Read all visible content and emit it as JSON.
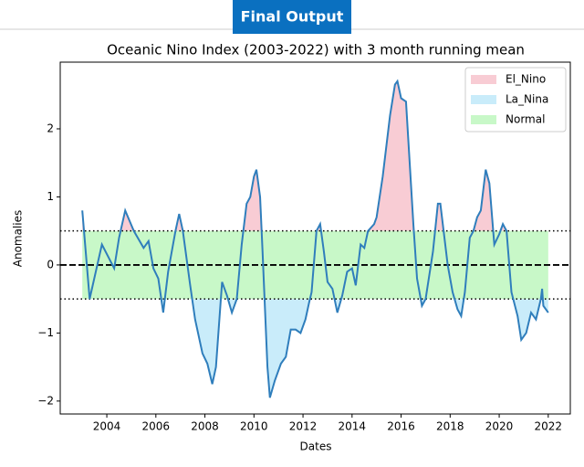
{
  "banner": "Final Output",
  "chart_data": {
    "type": "line",
    "title": "Oceanic Nino Index (2003-2022) with 3 month running mean",
    "xlabel": "Dates",
    "ylabel": "Anomalies",
    "x": [
      2003.0,
      2003.3,
      2003.8,
      2004.3,
      2004.5,
      2004.75,
      2005.1,
      2005.5,
      2005.7,
      2005.9,
      2006.1,
      2006.3,
      2006.5,
      2006.8,
      2006.95,
      2007.1,
      2007.4,
      2007.6,
      2007.9,
      2008.1,
      2008.3,
      2008.45,
      2008.7,
      2008.9,
      2009.1,
      2009.3,
      2009.5,
      2009.7,
      2009.85,
      2010.0,
      2010.1,
      2010.25,
      2010.35,
      2010.55,
      2010.65,
      2010.85,
      2011.1,
      2011.3,
      2011.5,
      2011.7,
      2011.9,
      2012.1,
      2012.25,
      2012.35,
      2012.55,
      2012.7,
      2012.85,
      2013.0,
      2013.2,
      2013.4,
      2013.6,
      2013.8,
      2014.0,
      2014.15,
      2014.35,
      2014.5,
      2014.65,
      2014.9,
      2015.0,
      2015.25,
      2015.55,
      2015.75,
      2015.85,
      2016.0,
      2016.2,
      2016.3,
      2016.5,
      2016.65,
      2016.85,
      2017.0,
      2017.3,
      2017.5,
      2017.6,
      2017.9,
      2018.1,
      2018.3,
      2018.45,
      2018.6,
      2018.8,
      2018.95,
      2019.1,
      2019.25,
      2019.45,
      2019.6,
      2019.8,
      2020.0,
      2020.15,
      2020.3,
      2020.5,
      2020.75,
      2020.9,
      2021.1,
      2021.3,
      2021.5,
      2021.7,
      2021.75,
      2021.8,
      2022.0
    ],
    "series": [
      {
        "color": "#2f7ebc",
        "values": [
          0.8,
          -0.5,
          0.3,
          -0.05,
          0.4,
          0.8,
          0.5,
          0.25,
          0.35,
          -0.05,
          -0.2,
          -0.7,
          -0.1,
          0.5,
          0.75,
          0.5,
          -0.3,
          -0.8,
          -1.3,
          -1.45,
          -1.75,
          -1.5,
          -0.25,
          -0.45,
          -0.7,
          -0.5,
          0.3,
          0.9,
          1.0,
          1.3,
          1.4,
          1.0,
          0.2,
          -1.5,
          -1.95,
          -1.7,
          -1.45,
          -1.35,
          -0.95,
          -0.95,
          -1.0,
          -0.8,
          -0.55,
          -0.4,
          0.5,
          0.6,
          0.2,
          -0.25,
          -0.35,
          -0.7,
          -0.45,
          -0.1,
          -0.05,
          -0.3,
          0.3,
          0.25,
          0.5,
          0.6,
          0.7,
          1.3,
          2.2,
          2.65,
          2.7,
          2.45,
          2.4,
          1.8,
          0.6,
          -0.2,
          -0.6,
          -0.5,
          0.2,
          0.9,
          0.9,
          0.0,
          -0.4,
          -0.65,
          -0.75,
          -0.4,
          0.4,
          0.5,
          0.7,
          0.8,
          1.4,
          1.2,
          0.3,
          0.45,
          0.6,
          0.5,
          -0.4,
          -0.75,
          -1.1,
          -1.0,
          -0.7,
          -0.8,
          -0.5,
          -0.35,
          -0.6,
          -0.7
        ]
      }
    ],
    "fills": [
      {
        "name": "El_Nino",
        "color": "#f8ccd4"
      },
      {
        "name": "La_Nina",
        "color": "#c9ecfa"
      },
      {
        "name": "Normal",
        "color": "#c8f8c8"
      }
    ],
    "thresholds": [
      0.5,
      -0.5
    ],
    "zero_line": 0,
    "xlim": [
      2002.1,
      2022.9
    ],
    "ylim": [
      -2.19,
      2.98
    ],
    "xticks": [
      2004,
      2006,
      2008,
      2010,
      2012,
      2014,
      2016,
      2018,
      2020,
      2022
    ],
    "yticks": [
      {
        "value": -2,
        "label": "−2"
      },
      {
        "value": -1,
        "label": "−1"
      },
      0,
      1,
      2
    ],
    "legend": "upper right"
  }
}
